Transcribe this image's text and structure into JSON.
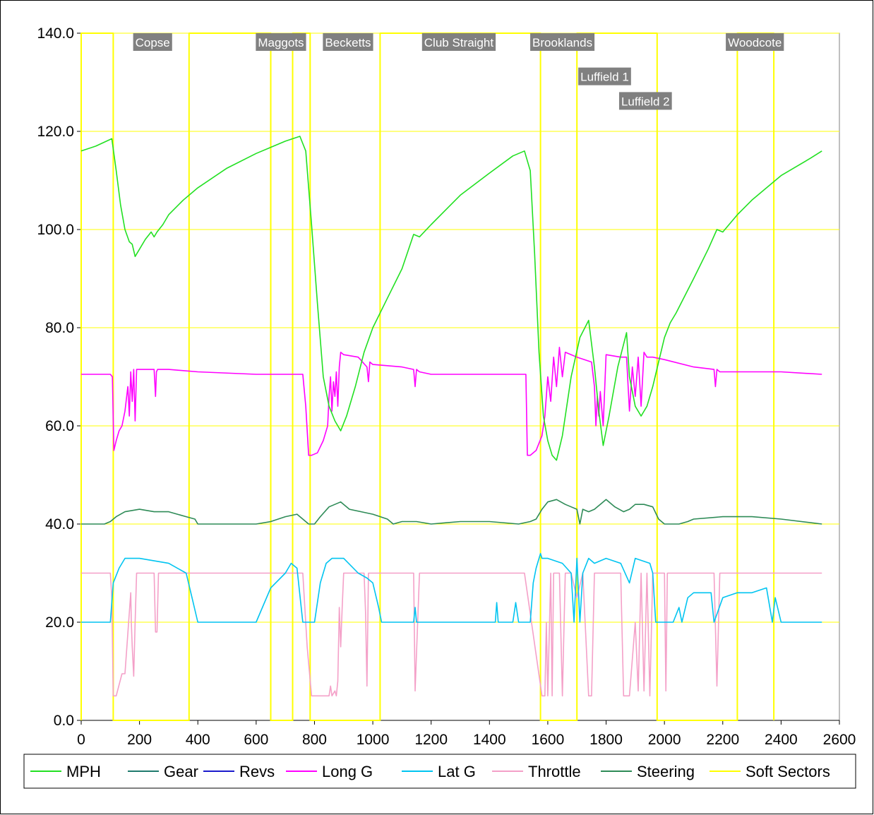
{
  "chart_data": {
    "type": "line",
    "title": "",
    "xlabel": "",
    "ylabel": "",
    "xlim": [
      0,
      2600
    ],
    "ylim": [
      0,
      140
    ],
    "x_ticks": [
      0,
      200,
      400,
      600,
      800,
      1000,
      1200,
      1400,
      1600,
      1800,
      2000,
      2200,
      2400,
      2600
    ],
    "y_ticks": [
      0,
      20,
      40,
      60,
      80,
      100,
      120,
      140
    ],
    "y_tick_labels": [
      "0.0",
      "20.0",
      "40.0",
      "60.0",
      "80.0",
      "100.0",
      "120.0",
      "140.0"
    ],
    "grid": "horizontal",
    "legend_position": "bottom",
    "series": [
      {
        "name": "MPH",
        "color": "#22e022",
        "x": [
          0,
          50,
          105,
          120,
          135,
          150,
          165,
          175,
          185,
          200,
          220,
          240,
          250,
          260,
          280,
          300,
          350,
          400,
          500,
          600,
          700,
          750,
          770,
          790,
          810,
          830,
          850,
          870,
          890,
          910,
          940,
          970,
          1000,
          1050,
          1100,
          1140,
          1160,
          1200,
          1300,
          1400,
          1480,
          1520,
          1540,
          1555,
          1570,
          1585,
          1600,
          1615,
          1630,
          1650,
          1680,
          1710,
          1740,
          1760,
          1775,
          1790,
          1810,
          1840,
          1870,
          1880,
          1900,
          1920,
          1940,
          1960,
          1980,
          2000,
          2020,
          2040,
          2100,
          2150,
          2180,
          2200,
          2250,
          2300,
          2400,
          2500,
          2540
        ],
        "values": [
          116,
          117,
          118.5,
          112,
          105,
          100,
          97.5,
          97,
          94.5,
          96,
          98,
          99.5,
          98.5,
          99.5,
          101,
          103,
          106,
          108.5,
          112.5,
          115.5,
          118,
          119,
          116,
          101,
          85,
          70,
          64,
          61,
          59,
          62,
          68,
          75,
          80,
          86,
          92,
          99,
          98.5,
          101,
          107,
          111.5,
          115,
          116,
          112,
          95,
          75,
          62,
          57,
          54,
          53,
          58,
          70,
          78,
          81.5,
          72,
          63,
          56,
          62,
          72,
          79,
          70,
          64,
          62,
          64,
          68,
          73,
          78,
          81,
          83,
          90,
          96,
          100,
          99.5,
          103,
          106,
          111,
          114.5,
          116
        ]
      },
      {
        "name": "Gear",
        "color": "#1f7a6e",
        "x": [],
        "values": []
      },
      {
        "name": "Revs",
        "color": "#1a1acc",
        "x": [],
        "values": []
      },
      {
        "name": "Long G",
        "color": "#ff00ff",
        "x": [
          0,
          100,
          107,
          112,
          120,
          130,
          140,
          150,
          160,
          165,
          170,
          175,
          180,
          185,
          190,
          200,
          250,
          255,
          258,
          262,
          300,
          400,
          600,
          700,
          760,
          770,
          780,
          790,
          810,
          830,
          845,
          850,
          855,
          860,
          865,
          870,
          875,
          880,
          885,
          890,
          900,
          950,
          980,
          985,
          990,
          1000,
          1100,
          1140,
          1145,
          1150,
          1160,
          1200,
          1400,
          1500,
          1525,
          1530,
          1540,
          1560,
          1580,
          1590,
          1600,
          1610,
          1620,
          1630,
          1640,
          1650,
          1660,
          1680,
          1700,
          1750,
          1760,
          1765,
          1770,
          1775,
          1780,
          1790,
          1800,
          1850,
          1870,
          1880,
          1890,
          1900,
          1910,
          1920,
          1930,
          1940,
          1960,
          2000,
          2100,
          2170,
          2175,
          2180,
          2190,
          2300,
          2400,
          2540
        ],
        "values": [
          70.5,
          70.5,
          70,
          55,
          57,
          59,
          60,
          63,
          68,
          62,
          71,
          65,
          71.5,
          61,
          71.5,
          71.5,
          71.5,
          66,
          71,
          71.5,
          71.5,
          71,
          70.5,
          70.5,
          70.5,
          64,
          54,
          54,
          54.5,
          57,
          60,
          66,
          70,
          63,
          69,
          66,
          71,
          64,
          72,
          75,
          74.5,
          74,
          72,
          69,
          73,
          72.5,
          72,
          71.5,
          68,
          71.5,
          71,
          70.5,
          70.5,
          70.5,
          70.5,
          54,
          54,
          55,
          58,
          62,
          70,
          65,
          74,
          68,
          76,
          70,
          75,
          74.5,
          74,
          73,
          68,
          60,
          66,
          62,
          67,
          60,
          74.5,
          74,
          74,
          63,
          72,
          66,
          74,
          64,
          75,
          74,
          74,
          73.5,
          72,
          71.5,
          68,
          71.5,
          71,
          71,
          71,
          70.5
        ]
      },
      {
        "name": "Lat G",
        "color": "#00c4f0",
        "x": [
          0,
          95,
          100,
          110,
          130,
          150,
          200,
          250,
          300,
          360,
          380,
          400,
          420,
          600,
          650,
          700,
          720,
          740,
          760,
          780,
          800,
          820,
          840,
          860,
          880,
          900,
          950,
          980,
          1000,
          1020,
          1030,
          1040,
          1050,
          1140,
          1145,
          1150,
          1400,
          1420,
          1425,
          1430,
          1480,
          1490,
          1500,
          1530,
          1540,
          1550,
          1560,
          1570,
          1575,
          1580,
          1600,
          1650,
          1680,
          1690,
          1700,
          1710,
          1720,
          1740,
          1760,
          1800,
          1850,
          1880,
          1900,
          1950,
          1960,
          1970,
          1980,
          2030,
          2050,
          2060,
          2080,
          2100,
          2160,
          2170,
          2200,
          2250,
          2300,
          2350,
          2370,
          2380,
          2400,
          2420,
          2540
        ],
        "values": [
          20,
          20,
          20,
          28,
          31,
          33,
          33,
          32.5,
          32,
          30,
          25,
          20,
          20,
          20,
          27,
          30,
          32,
          31,
          20,
          20,
          20,
          28,
          32,
          33,
          33,
          33,
          30,
          29,
          28,
          23,
          20,
          20,
          20,
          20,
          23,
          20,
          20,
          20,
          24,
          20,
          20,
          24,
          20,
          20,
          20,
          28,
          31,
          33,
          34,
          33,
          33,
          32,
          30,
          20,
          33,
          20,
          30,
          33,
          32,
          33,
          32,
          28,
          33,
          32,
          30,
          20,
          20,
          20,
          23,
          20,
          25,
          26,
          26,
          20,
          25,
          26,
          26,
          27,
          20,
          25,
          20,
          20,
          20
        ]
      },
      {
        "name": "Throttle",
        "color": "#f4a0c8",
        "x": [
          0,
          100,
          105,
          110,
          115,
          120,
          140,
          150,
          170,
          172,
          175,
          180,
          185,
          190,
          200,
          250,
          255,
          260,
          265,
          300,
          400,
          600,
          760,
          775,
          790,
          800,
          850,
          855,
          860,
          870,
          875,
          880,
          885,
          890,
          895,
          900,
          950,
          970,
          975,
          980,
          985,
          1000,
          1100,
          1140,
          1145,
          1160,
          1200,
          1500,
          1520,
          1580,
          1585,
          1590,
          1595,
          1600,
          1610,
          1615,
          1620,
          1640,
          1650,
          1660,
          1680,
          1700,
          1720,
          1740,
          1750,
          1760,
          1800,
          1850,
          1860,
          1880,
          1900,
          1910,
          1920,
          1930,
          1940,
          1950,
          1960,
          2000,
          2005,
          2010,
          2100,
          2170,
          2180,
          2190,
          2400,
          2540
        ],
        "values": [
          30,
          30,
          25,
          5,
          5,
          5,
          9.5,
          9.5,
          26,
          20,
          15,
          9,
          20,
          30,
          30,
          30,
          18,
          18,
          30,
          30,
          30,
          30,
          30,
          15,
          5,
          5,
          5,
          7,
          5,
          6,
          5,
          8,
          23,
          15,
          23,
          30,
          30,
          30,
          22,
          7,
          30,
          30,
          30,
          30,
          6,
          30,
          30,
          30,
          30,
          5,
          5,
          5,
          20,
          5,
          30,
          5,
          30,
          30,
          5,
          30,
          30,
          25,
          30,
          5,
          5,
          30,
          30,
          30,
          5,
          5,
          20,
          6,
          30,
          6,
          30,
          5,
          30,
          30,
          6,
          30,
          30,
          30,
          7,
          30,
          30,
          30
        ]
      },
      {
        "name": "Steering",
        "color": "#2e8b57",
        "x": [
          0,
          80,
          100,
          120,
          150,
          200,
          250,
          300,
          360,
          390,
          400,
          450,
          600,
          650,
          700,
          740,
          760,
          780,
          800,
          820,
          850,
          890,
          920,
          960,
          1000,
          1050,
          1070,
          1100,
          1150,
          1200,
          1300,
          1400,
          1500,
          1540,
          1560,
          1580,
          1600,
          1630,
          1660,
          1680,
          1700,
          1710,
          1720,
          1740,
          1760,
          1790,
          1800,
          1830,
          1860,
          1880,
          1900,
          1930,
          1960,
          1980,
          2000,
          2050,
          2080,
          2100,
          2200,
          2300,
          2400,
          2540
        ],
        "values": [
          40,
          40,
          40.5,
          41.5,
          42.5,
          43,
          42.5,
          42.5,
          41.5,
          41,
          40,
          40,
          40,
          40.5,
          41.5,
          42,
          41,
          40,
          40,
          41.5,
          43.5,
          44.5,
          43,
          42.5,
          42,
          41,
          40,
          40.5,
          40.5,
          40,
          40.5,
          40.5,
          40,
          40.5,
          41,
          43,
          44.5,
          45,
          44,
          43.5,
          43,
          40,
          43,
          42.5,
          43,
          44.5,
          45,
          43.5,
          42.5,
          43,
          44,
          44,
          43.5,
          41,
          40,
          40,
          40.5,
          41,
          41.5,
          41.5,
          41,
          40
        ]
      },
      {
        "name": "Soft Sectors",
        "color": "#ffff00",
        "x": [
          0,
          0,
          110,
          110,
          370,
          370,
          650,
          650,
          725,
          725,
          785,
          785,
          1025,
          1025,
          1575,
          1575,
          1700,
          1700,
          1975,
          1975,
          2250,
          2250,
          2375,
          2375
        ],
        "values": [
          0,
          140,
          140,
          0,
          0,
          140,
          140,
          0,
          0,
          140,
          140,
          0,
          0,
          140,
          140,
          0,
          0,
          140,
          140,
          0,
          0,
          140,
          140,
          0
        ]
      }
    ],
    "annotations": [
      {
        "text": "Copse",
        "x": 245,
        "y": 140
      },
      {
        "text": "Maggots",
        "x": 685,
        "y": 140
      },
      {
        "text": "Becketts",
        "x": 915,
        "y": 140
      },
      {
        "text": "Club Straight",
        "x": 1295,
        "y": 140
      },
      {
        "text": "Brooklands",
        "x": 1650,
        "y": 140
      },
      {
        "text": "Luffield 1",
        "x": 1795,
        "y": 133
      },
      {
        "text": "Luffield 2",
        "x": 1935,
        "y": 128
      },
      {
        "text": "Woodcote",
        "x": 2310,
        "y": 140
      }
    ]
  }
}
